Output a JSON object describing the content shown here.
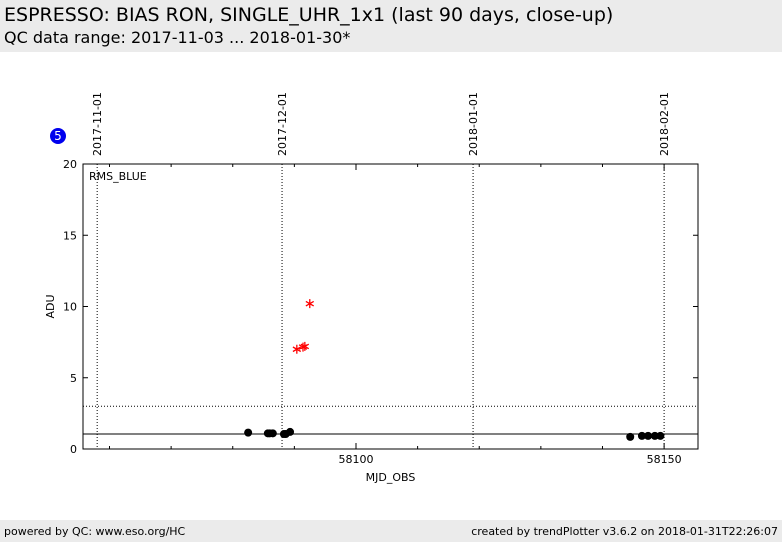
{
  "header": {
    "title": "ESPRESSO: BIAS RON, SINGLE_UHR_1x1 (last 90 days, close-up)",
    "subtitle": "QC data range: 2017-11-03 ... 2018-01-30*"
  },
  "badge": "5",
  "chart_data": {
    "type": "scatter",
    "panel_label": "RMS_BLUE",
    "x_label": "MJD_OBS",
    "y_label": "ADU",
    "xlim": [
      58055.7,
      58155.5
    ],
    "ylim": [
      0,
      20
    ],
    "xticks": [
      58100,
      58150
    ],
    "xminorticks": [
      58060,
      58070,
      58080,
      58090,
      58110,
      58120,
      58130,
      58140
    ],
    "yticks": [
      0,
      5,
      10,
      15,
      20
    ],
    "date_ticks": [
      {
        "value": 58058,
        "label": "2017-11-01"
      },
      {
        "value": 58088,
        "label": "2017-12-01"
      },
      {
        "value": 58119,
        "label": "2018-01-01"
      },
      {
        "value": 58150,
        "label": "2018-02-01"
      }
    ],
    "reference_lines": [
      {
        "value": 1.05,
        "style": "solid"
      },
      {
        "value": 3,
        "style": "dotted"
      }
    ],
    "series": [
      {
        "color": "#000000",
        "marker": "circle",
        "x": [
          58082.5,
          58085.7,
          58086.0,
          58086.5,
          58088.3,
          58088.6,
          58089.3,
          58144.5,
          58146.4,
          58147.4,
          58148.5,
          58149.4
        ],
        "values": [
          1.15,
          1.1,
          1.1,
          1.1,
          1.05,
          1.05,
          1.2,
          0.85,
          0.92,
          0.92,
          0.92,
          0.92
        ]
      },
      {
        "color": "#ff0000",
        "marker": "star",
        "x": [
          58090.4,
          58091.4,
          58091.7,
          58092.5
        ],
        "values": [
          7.0,
          7.15,
          7.2,
          10.2
        ]
      }
    ]
  },
  "footer": {
    "left": "powered by QC: www.eso.org/HC",
    "right": "created by trendPlotter v3.6.2 on 2018-01-31T22:26:07"
  }
}
